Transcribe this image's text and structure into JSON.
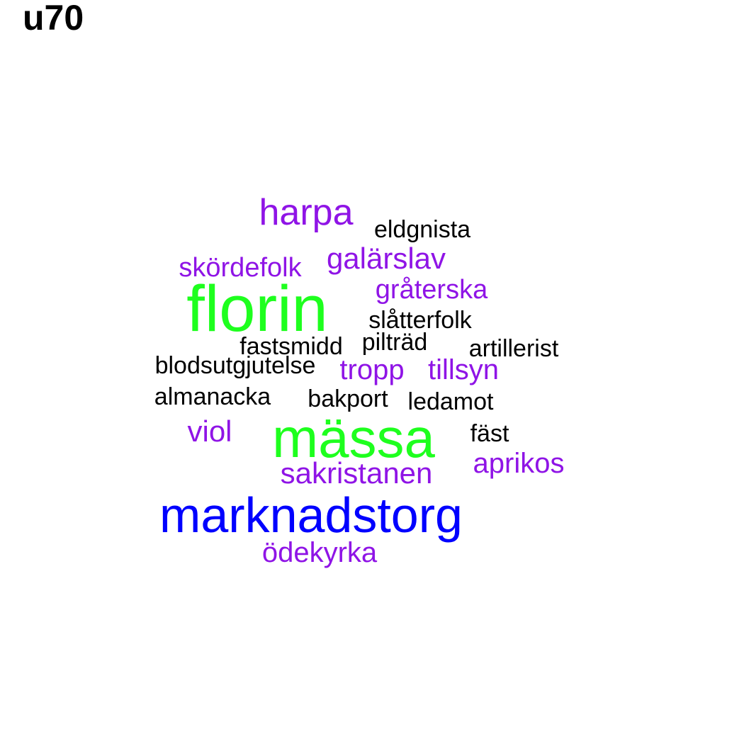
{
  "title": "u70",
  "colors": {
    "green": "#1eff1e",
    "blue": "#0000ff",
    "purple": "#8f14e6",
    "black": "#000000"
  },
  "words": [
    {
      "text": "harpa",
      "color": "purple"
    },
    {
      "text": "eldgnista",
      "color": "black"
    },
    {
      "text": "skördefolk",
      "color": "purple"
    },
    {
      "text": "galärslav",
      "color": "purple"
    },
    {
      "text": "gråterska",
      "color": "purple"
    },
    {
      "text": "florin",
      "color": "green"
    },
    {
      "text": "slåtterfolk",
      "color": "black"
    },
    {
      "text": "fastsmidd",
      "color": "black"
    },
    {
      "text": "pilträd",
      "color": "black"
    },
    {
      "text": "artillerist",
      "color": "black"
    },
    {
      "text": "blodsutgjutelse",
      "color": "black"
    },
    {
      "text": "tropp",
      "color": "purple"
    },
    {
      "text": "tillsyn",
      "color": "purple"
    },
    {
      "text": "almanacka",
      "color": "black"
    },
    {
      "text": "bakport",
      "color": "black"
    },
    {
      "text": "ledamot",
      "color": "black"
    },
    {
      "text": "viol",
      "color": "purple"
    },
    {
      "text": "mässa",
      "color": "green"
    },
    {
      "text": "fäst",
      "color": "black"
    },
    {
      "text": "aprikos",
      "color": "purple"
    },
    {
      "text": "sakristanen",
      "color": "purple"
    },
    {
      "text": "marknadstorg",
      "color": "blue"
    },
    {
      "text": "ödekyrka",
      "color": "purple"
    }
  ]
}
